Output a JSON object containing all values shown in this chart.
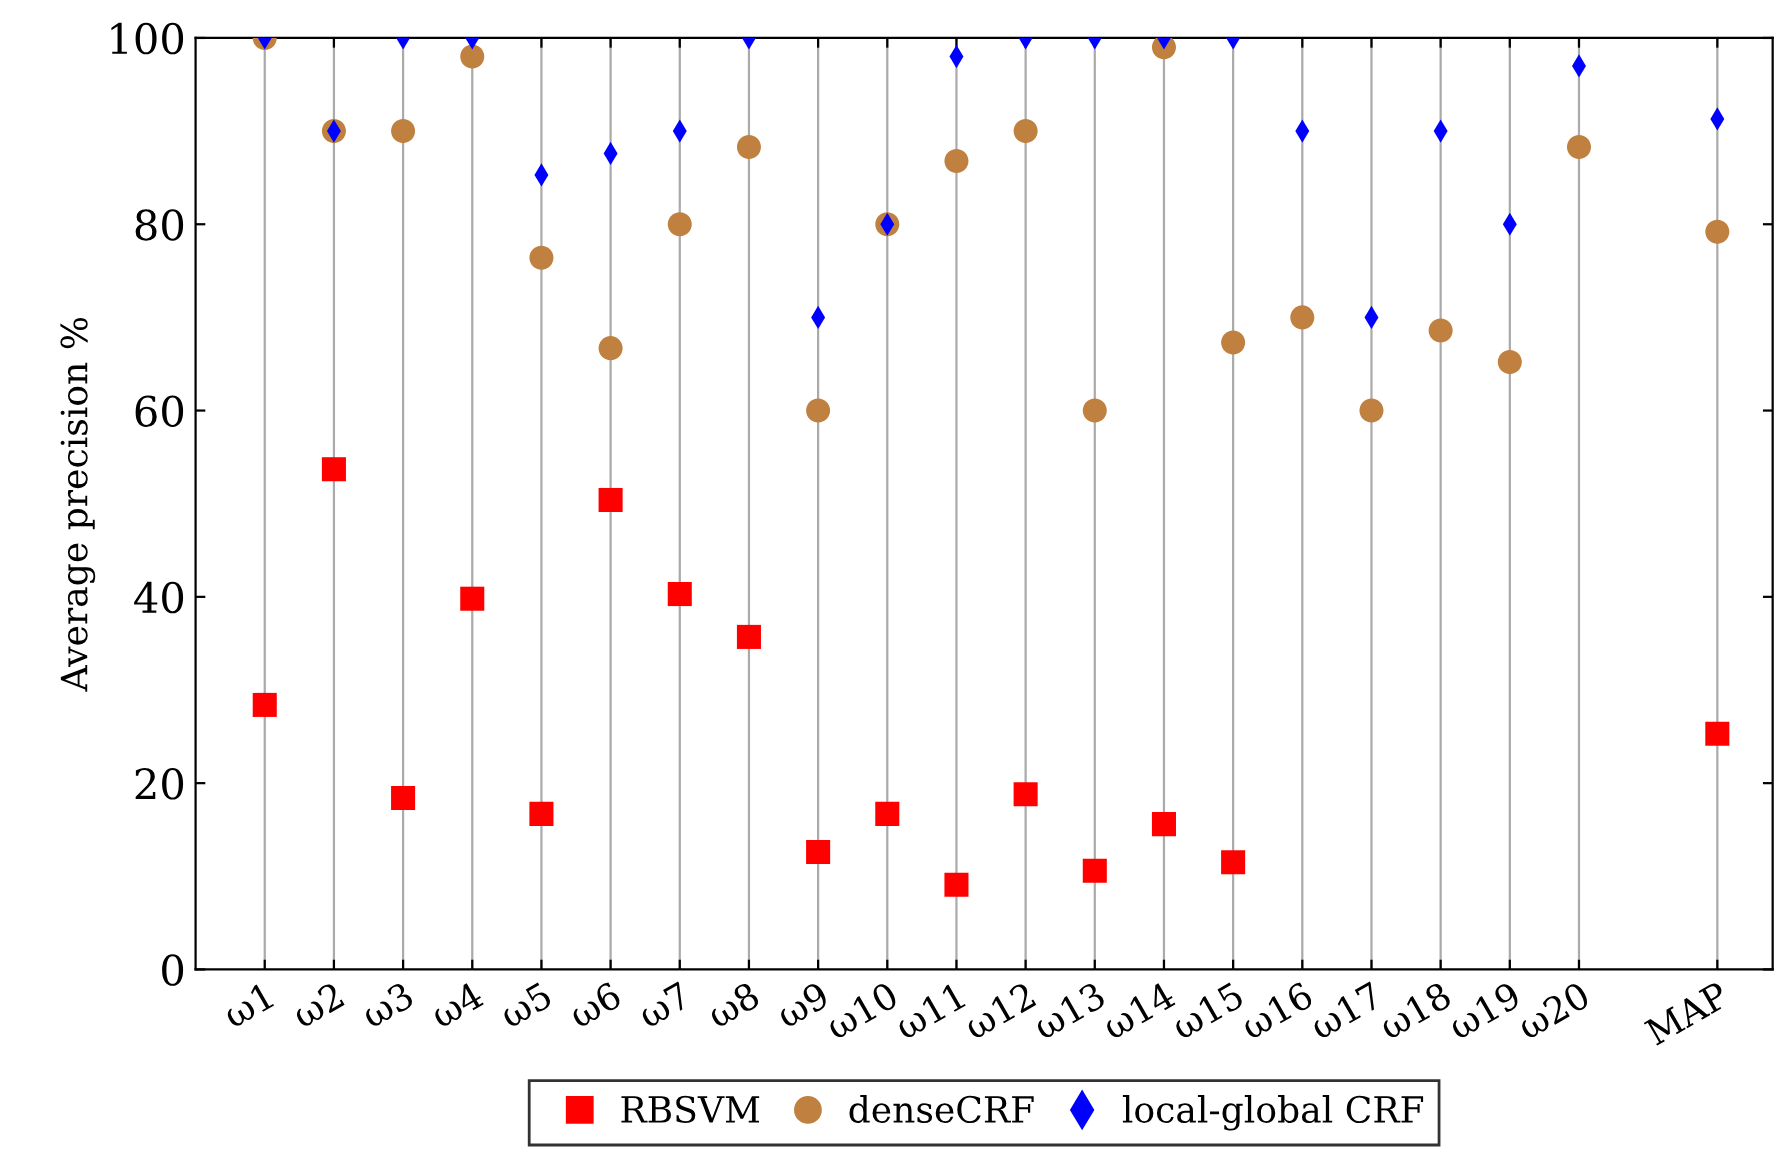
{
  "chart_data": {
    "type": "scatter",
    "ylabel": "Average precision %",
    "categories": [
      "ω1",
      "ω2",
      "ω3",
      "ω4",
      "ω5",
      "ω6",
      "ω7",
      "ω8",
      "ω9",
      "ω10",
      "ω11",
      "ω12",
      "ω13",
      "ω14",
      "ω15",
      "ω16",
      "ω17",
      "ω18",
      "ω19",
      "ω20",
      null,
      "MAP"
    ],
    "ylim": [
      0,
      100
    ],
    "yticks": [
      0,
      20,
      40,
      60,
      80,
      100
    ],
    "grid": "x",
    "legend": "bottom",
    "series": [
      {
        "name": "RBSVM",
        "color": "#ff0000",
        "marker": "square",
        "values": [
          28.4,
          53.7,
          18.4,
          39.8,
          16.7,
          50.4,
          40.3,
          35.7,
          12.6,
          16.7,
          9.1,
          18.8,
          10.6,
          15.6,
          11.5,
          null,
          null,
          null,
          null,
          null,
          null,
          25.3
        ]
      },
      {
        "name": "denseCRF",
        "color": "#c0803f",
        "marker": "circle",
        "values": [
          100,
          90,
          90,
          98,
          76.4,
          66.7,
          80,
          88.3,
          60,
          80,
          86.8,
          90,
          60,
          99,
          67.3,
          70,
          60,
          68.6,
          65.2,
          88.3,
          null,
          79.2
        ]
      },
      {
        "name": "local-global CRF",
        "color": "#0000ff",
        "marker": "diamond",
        "values": [
          100,
          90,
          100,
          100,
          85.3,
          87.6,
          90,
          100,
          70,
          80,
          98,
          100,
          100,
          100,
          100,
          90,
          70,
          90,
          80,
          97,
          null,
          91.3
        ]
      }
    ]
  }
}
